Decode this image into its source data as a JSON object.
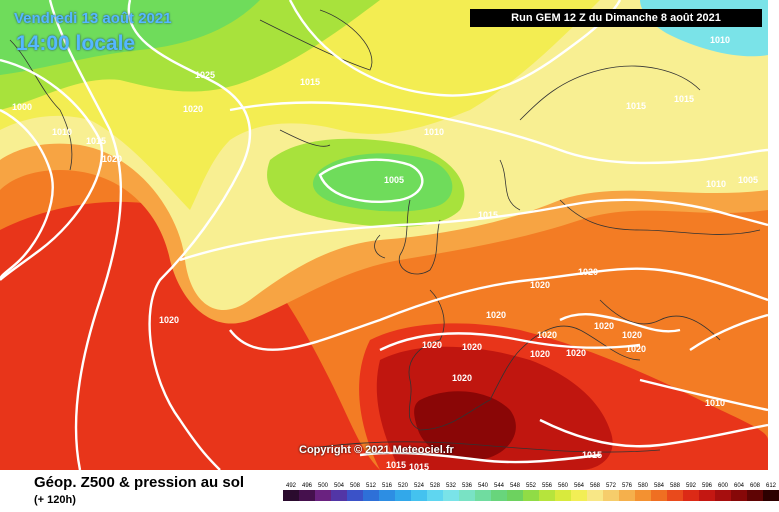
{
  "header": {
    "date": "Vendredi 13 août 2021",
    "time": "14:00 locale",
    "run": "Run GEM 12 Z du Dimanche 8 août 2021"
  },
  "copyright": "Copyright © 2021 Meteociel.fr",
  "footer": {
    "title": "Géop. Z500 & pression au sol",
    "subtitle": "(+ 120h)"
  },
  "legend": {
    "values": [
      "492",
      "496",
      "500",
      "504",
      "508",
      "512",
      "516",
      "520",
      "524",
      "528",
      "532",
      "536",
      "540",
      "544",
      "548",
      "552",
      "556",
      "560",
      "564",
      "568",
      "572",
      "576",
      "580",
      "584",
      "588",
      "592",
      "596",
      "600",
      "604",
      "608",
      "612"
    ],
    "colors": [
      "#2a0b2e",
      "#45104d",
      "#6a2280",
      "#5236a6",
      "#3b52c8",
      "#2e70d8",
      "#2d8ee3",
      "#32a8ea",
      "#44c2ef",
      "#5fd6f0",
      "#7ae3e8",
      "#79e2c4",
      "#70dca0",
      "#68d57c",
      "#6dd25f",
      "#90dc46",
      "#b6e43c",
      "#d8ea3d",
      "#f2ee55",
      "#f8e786",
      "#f6cd6b",
      "#f5b04c",
      "#f39131",
      "#ef6f22",
      "#e94a1c",
      "#dc2a16",
      "#c41712",
      "#a60e0e",
      "#860808",
      "#5f0404",
      "#2c0000"
    ]
  },
  "map": {
    "colors": {
      "ocean_red": "#e8351a",
      "orange": "#f37c24",
      "light_orange": "#f7a443",
      "yellow": "#f3ed52",
      "pale_yellow": "#f8ef92",
      "lime": "#a8e23c",
      "green": "#6fdc5b",
      "cyan": "#7ae3e8",
      "dark_red": "#c0160f",
      "darkest_red": "#8a0606",
      "isobar": "#ffffff",
      "coast": "#333333"
    },
    "isobar_labels": [
      "1025",
      "1015",
      "1000",
      "1010",
      "1020",
      "1015",
      "1010",
      "1020",
      "1005",
      "1015",
      "1010",
      "1015",
      "1015",
      "1010",
      "1005",
      "1020",
      "1020",
      "1020",
      "1020",
      "1020",
      "1020",
      "1020",
      "1020",
      "1020",
      "1020",
      "1020",
      "1020",
      "1020",
      "1010",
      "1015",
      "1015",
      "1015"
    ]
  }
}
